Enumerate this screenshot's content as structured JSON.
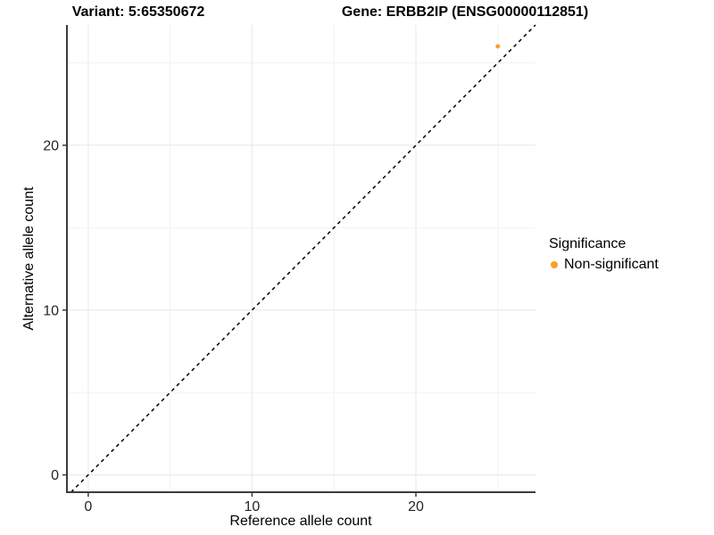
{
  "titles": {
    "variant": "Variant: 5:65350672",
    "gene": "Gene: ERBB2IP (ENSG00000112851)"
  },
  "chart_data": {
    "type": "scatter",
    "xlabel": "Reference allele count",
    "ylabel": "Alternative allele count",
    "x_ticks": [
      0,
      10,
      20
    ],
    "y_ticks": [
      0,
      10,
      20
    ],
    "x_minor_ticks": [
      5,
      15,
      25
    ],
    "y_minor_ticks": [
      5,
      15,
      25
    ],
    "xlim": [
      -1.3,
      27.3
    ],
    "ylim": [
      -1.05,
      27.3
    ],
    "grid": true,
    "identity_line": {
      "equation": "y = x",
      "style": "dashed",
      "color": "#000000"
    },
    "series": [
      {
        "name": "Non-significant",
        "color": "#F8A12C",
        "points": [
          {
            "x": 25,
            "y": 26
          }
        ]
      }
    ],
    "legend": {
      "title": "Significance",
      "position": "right",
      "entries": [
        {
          "label": "Non-significant",
          "color": "#F8A12C"
        }
      ]
    }
  },
  "colors": {
    "background": "#FFFFFF",
    "axis_line": "#3C3C3C",
    "tick_label": "#262626",
    "grid_major": "#E8E8E8",
    "grid_minor": "#F2F2F2"
  }
}
